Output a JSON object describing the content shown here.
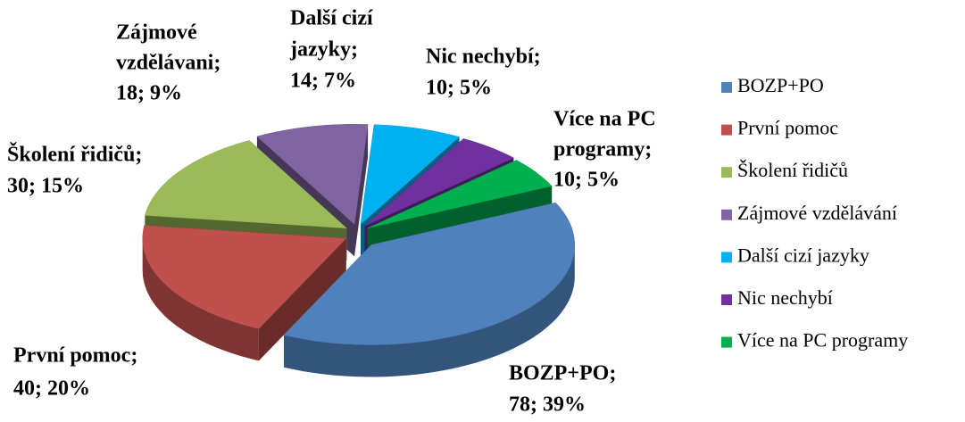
{
  "chart_data": {
    "type": "pie3d",
    "categories": [
      "BOZP+PO",
      "První pomoc",
      "Školení řidičů",
      "Zájmové vzdělávání",
      "Další cizí jazyky",
      "Nic nechybí",
      "Více na PC programy"
    ],
    "values": [
      78,
      40,
      30,
      18,
      14,
      10,
      10
    ],
    "value_labels": [
      [
        "BOZP+PO;",
        "78; 39%"
      ],
      [
        "První pomoc;",
        "40; 20%"
      ],
      [
        "Školení řidičů;",
        "30; 15%"
      ],
      [
        "Zájmové",
        "vzdělávani;",
        "18; 9%"
      ],
      [
        "Další cizí",
        "jazyky;",
        "14; 7%"
      ],
      [
        "Nic nechybí;",
        "10; 5%"
      ],
      [
        "Více na PC",
        "programy;",
        "10; 5%"
      ]
    ],
    "colors": [
      "#4f81bd",
      "#c0504d",
      "#9bbb59",
      "#8064a2",
      "#00b0f0",
      "#7030a0",
      "#00b050"
    ],
    "legend": "right"
  }
}
